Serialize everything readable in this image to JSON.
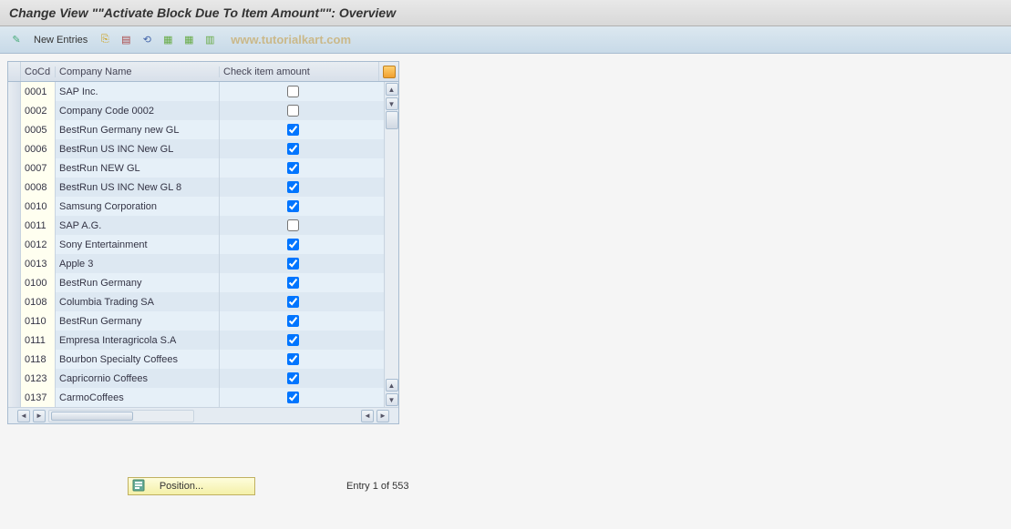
{
  "title": "Change View \"\"Activate Block Due To Item Amount\"\": Overview",
  "toolbar": {
    "new_entries_label": "New Entries"
  },
  "watermark": "www.tutorialkart.com",
  "columns": {
    "cocd": "CoCd",
    "company_name": "Company Name",
    "check_item": "Check item amount"
  },
  "rows": [
    {
      "cocd": "0001",
      "name": "SAP Inc.",
      "checked": false
    },
    {
      "cocd": "0002",
      "name": "Company Code 0002",
      "checked": false
    },
    {
      "cocd": "0005",
      "name": "BestRun Germany new GL",
      "checked": true
    },
    {
      "cocd": "0006",
      "name": "BestRun US INC New GL",
      "checked": true
    },
    {
      "cocd": "0007",
      "name": "BestRun NEW GL",
      "checked": true
    },
    {
      "cocd": "0008",
      "name": "BestRun US INC New GL 8",
      "checked": true
    },
    {
      "cocd": "0010",
      "name": "Samsung Corporation",
      "checked": true
    },
    {
      "cocd": "0011",
      "name": "SAP A.G.",
      "checked": false
    },
    {
      "cocd": "0012",
      "name": "Sony Entertainment",
      "checked": true
    },
    {
      "cocd": "0013",
      "name": "Apple 3",
      "checked": true
    },
    {
      "cocd": "0100",
      "name": "BestRun Germany",
      "checked": true
    },
    {
      "cocd": "0108",
      "name": "Columbia Trading SA",
      "checked": true
    },
    {
      "cocd": "0110",
      "name": "BestRun Germany",
      "checked": true
    },
    {
      "cocd": "0111",
      "name": "Empresa Interagricola S.A",
      "checked": true
    },
    {
      "cocd": "0118",
      "name": "Bourbon Specialty Coffees",
      "checked": true
    },
    {
      "cocd": "0123",
      "name": "Capricornio Coffees",
      "checked": true
    },
    {
      "cocd": "0137",
      "name": "CarmoCoffees",
      "checked": true
    }
  ],
  "footer": {
    "position_label": "Position...",
    "entry_label": "Entry 1 of 553"
  },
  "colors": {
    "header_bg": "#e8e8e8",
    "toolbar_bg": "#c8dae8",
    "row_odd": "#e6f0f8",
    "row_even": "#dde8f2",
    "cocd_cell_bg": "#fffff0",
    "border": "#a8bcd0",
    "position_btn_bg": "#f4f0a8",
    "watermark_color": "#c8a860"
  }
}
